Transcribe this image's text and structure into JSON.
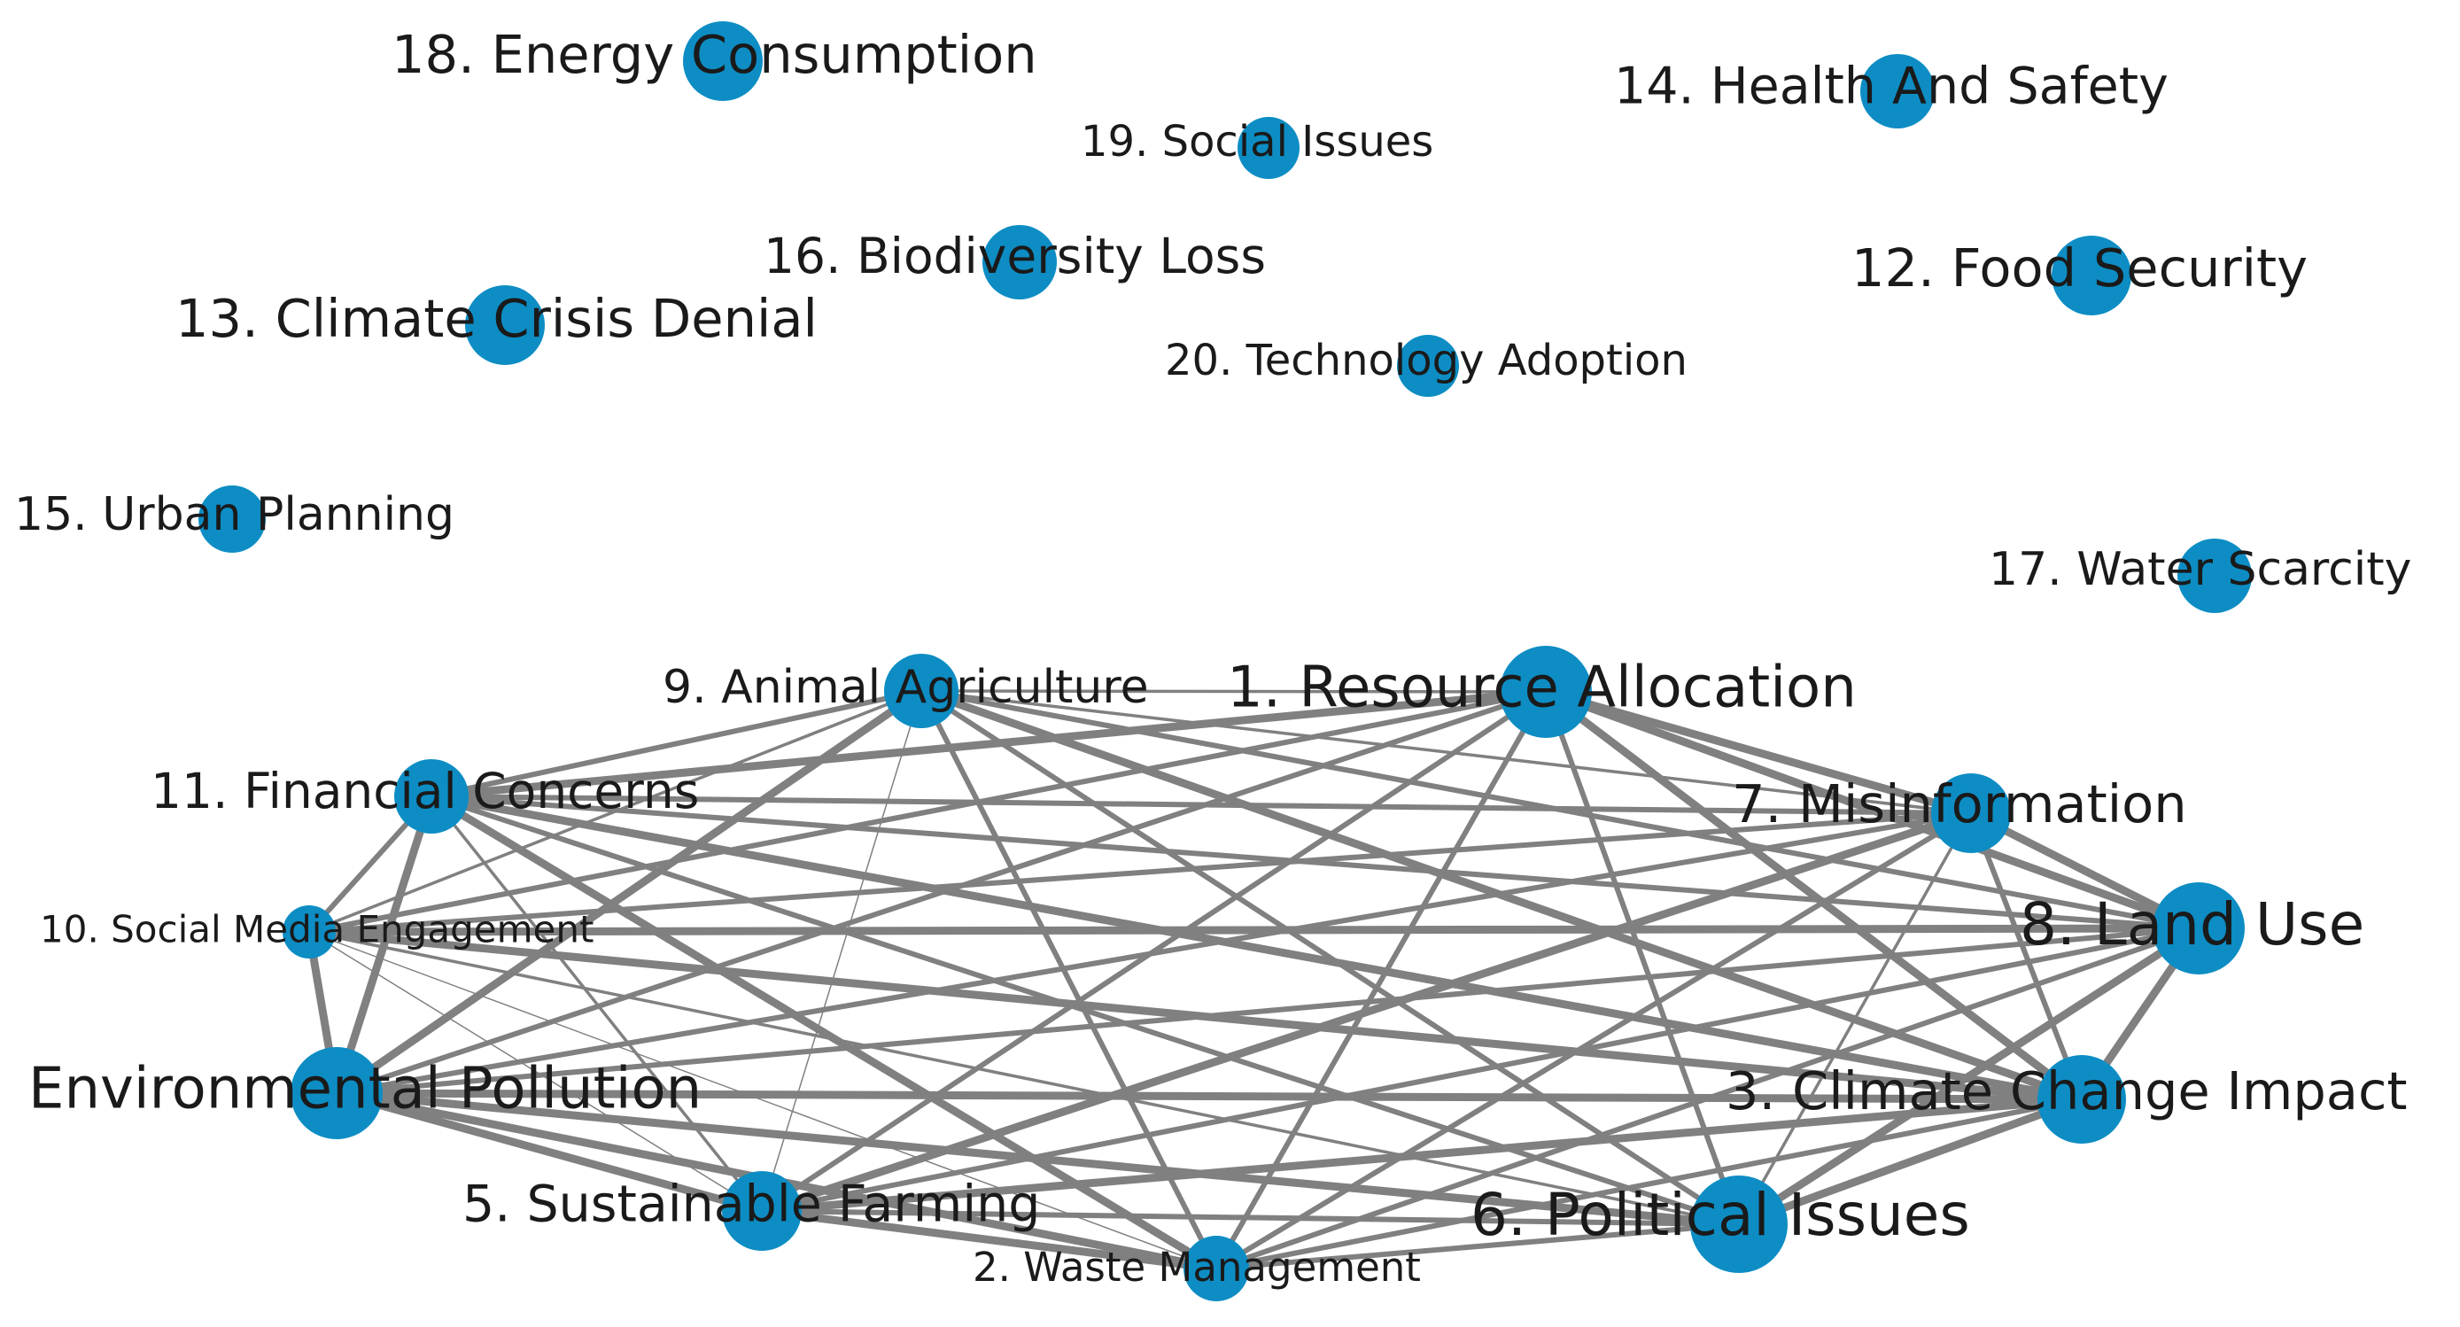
{
  "colors": {
    "node": "#0D8DC4",
    "edge": "#808080",
    "label": "#1a1a1a"
  },
  "nodes": [
    {
      "id": 1,
      "label": "1. Resource Allocation"
    },
    {
      "id": 2,
      "label": "2. Waste Management"
    },
    {
      "id": 3,
      "label": "3. Climate Change Impact"
    },
    {
      "id": 4,
      "label": "Environmental Pollution"
    },
    {
      "id": 5,
      "label": "5. Sustainable Farming"
    },
    {
      "id": 6,
      "label": "6. Political Issues"
    },
    {
      "id": 7,
      "label": "7. Misinformation"
    },
    {
      "id": 8,
      "label": "8. Land Use"
    },
    {
      "id": 9,
      "label": "9. Animal Agriculture"
    },
    {
      "id": 10,
      "label": "10. Social Media Engagement"
    },
    {
      "id": 11,
      "label": "11. Financial Concerns"
    },
    {
      "id": 12,
      "label": "12. Food Security"
    },
    {
      "id": 13,
      "label": "13. Climate Crisis Denial"
    },
    {
      "id": 14,
      "label": "14. Health And Safety"
    },
    {
      "id": 15,
      "label": "15. Urban Planning"
    },
    {
      "id": 16,
      "label": "16. Biodiversity Loss"
    },
    {
      "id": 17,
      "label": "17. Water Scarcity"
    },
    {
      "id": 18,
      "label": "18. Energy Consumption"
    },
    {
      "id": 19,
      "label": "19. Social Issues"
    },
    {
      "id": 20,
      "label": "20. Technology Adoption"
    }
  ],
  "edges": [
    [
      1,
      2,
      "medium"
    ],
    [
      1,
      3,
      "heavy"
    ],
    [
      1,
      4,
      "medium"
    ],
    [
      1,
      5,
      "medium"
    ],
    [
      1,
      6,
      "medium"
    ],
    [
      1,
      7,
      "heavy"
    ],
    [
      1,
      8,
      "heavy"
    ],
    [
      1,
      9,
      "light"
    ],
    [
      1,
      10,
      "medium"
    ],
    [
      1,
      11,
      "heavy"
    ],
    [
      2,
      3,
      "medium"
    ],
    [
      2,
      4,
      "heavy"
    ],
    [
      2,
      5,
      "heavy"
    ],
    [
      2,
      6,
      "medium"
    ],
    [
      2,
      7,
      "medium"
    ],
    [
      2,
      8,
      "medium"
    ],
    [
      2,
      9,
      "medium"
    ],
    [
      2,
      10,
      "thin"
    ],
    [
      2,
      11,
      "heavy"
    ],
    [
      3,
      4,
      "heavy"
    ],
    [
      3,
      5,
      "heavy"
    ],
    [
      3,
      6,
      "heavy"
    ],
    [
      3,
      7,
      "medium"
    ],
    [
      3,
      8,
      "heavy"
    ],
    [
      3,
      9,
      "heavy"
    ],
    [
      3,
      10,
      "heavy"
    ],
    [
      3,
      11,
      "heavy"
    ],
    [
      4,
      5,
      "heavy"
    ],
    [
      4,
      6,
      "heavy"
    ],
    [
      4,
      7,
      "medium"
    ],
    [
      4,
      8,
      "medium"
    ],
    [
      4,
      9,
      "heavy"
    ],
    [
      4,
      10,
      "heavy"
    ],
    [
      4,
      11,
      "heavy"
    ],
    [
      5,
      6,
      "medium"
    ],
    [
      5,
      7,
      "heavy"
    ],
    [
      5,
      8,
      "medium"
    ],
    [
      5,
      9,
      "thin"
    ],
    [
      5,
      10,
      "thin"
    ],
    [
      5,
      11,
      "light"
    ],
    [
      6,
      7,
      "light"
    ],
    [
      6,
      8,
      "heavy"
    ],
    [
      6,
      9,
      "medium"
    ],
    [
      6,
      10,
      "light"
    ],
    [
      6,
      11,
      "medium"
    ],
    [
      7,
      8,
      "heavy"
    ],
    [
      7,
      9,
      "light"
    ],
    [
      7,
      10,
      "medium"
    ],
    [
      7,
      11,
      "medium"
    ],
    [
      8,
      9,
      "medium"
    ],
    [
      8,
      10,
      "heavy"
    ],
    [
      8,
      11,
      "medium"
    ],
    [
      9,
      10,
      "light"
    ],
    [
      9,
      11,
      "medium"
    ],
    [
      10,
      11,
      "medium"
    ]
  ]
}
